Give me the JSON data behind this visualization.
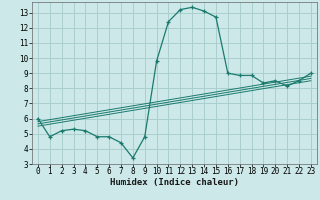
{
  "xlabel": "Humidex (Indice chaleur)",
  "bg_color": "#cce8e8",
  "grid_color": "#aacece",
  "line_color": "#1a7a6e",
  "xlim": [
    -0.5,
    23.5
  ],
  "ylim": [
    3.0,
    13.7
  ],
  "xticks": [
    0,
    1,
    2,
    3,
    4,
    5,
    6,
    7,
    8,
    9,
    10,
    11,
    12,
    13,
    14,
    15,
    16,
    17,
    18,
    19,
    20,
    21,
    22,
    23
  ],
  "yticks": [
    3,
    4,
    5,
    6,
    7,
    8,
    9,
    10,
    11,
    12,
    13
  ],
  "main_x": [
    0,
    1,
    2,
    3,
    4,
    5,
    6,
    7,
    8,
    9,
    10,
    11,
    12,
    13,
    14,
    15,
    16,
    17,
    18,
    19,
    20,
    21,
    22,
    23
  ],
  "main_y": [
    6.0,
    4.8,
    5.2,
    5.3,
    5.2,
    4.8,
    4.8,
    4.4,
    3.4,
    4.8,
    9.8,
    12.4,
    13.2,
    13.35,
    13.1,
    12.7,
    9.0,
    8.85,
    8.85,
    8.35,
    8.5,
    8.15,
    8.5,
    9.0
  ],
  "reg_lines": [
    {
      "x": [
        0,
        23
      ],
      "y": [
        5.5,
        8.5
      ]
    },
    {
      "x": [
        0,
        23
      ],
      "y": [
        5.65,
        8.65
      ]
    },
    {
      "x": [
        0,
        23
      ],
      "y": [
        5.8,
        8.8
      ]
    }
  ]
}
